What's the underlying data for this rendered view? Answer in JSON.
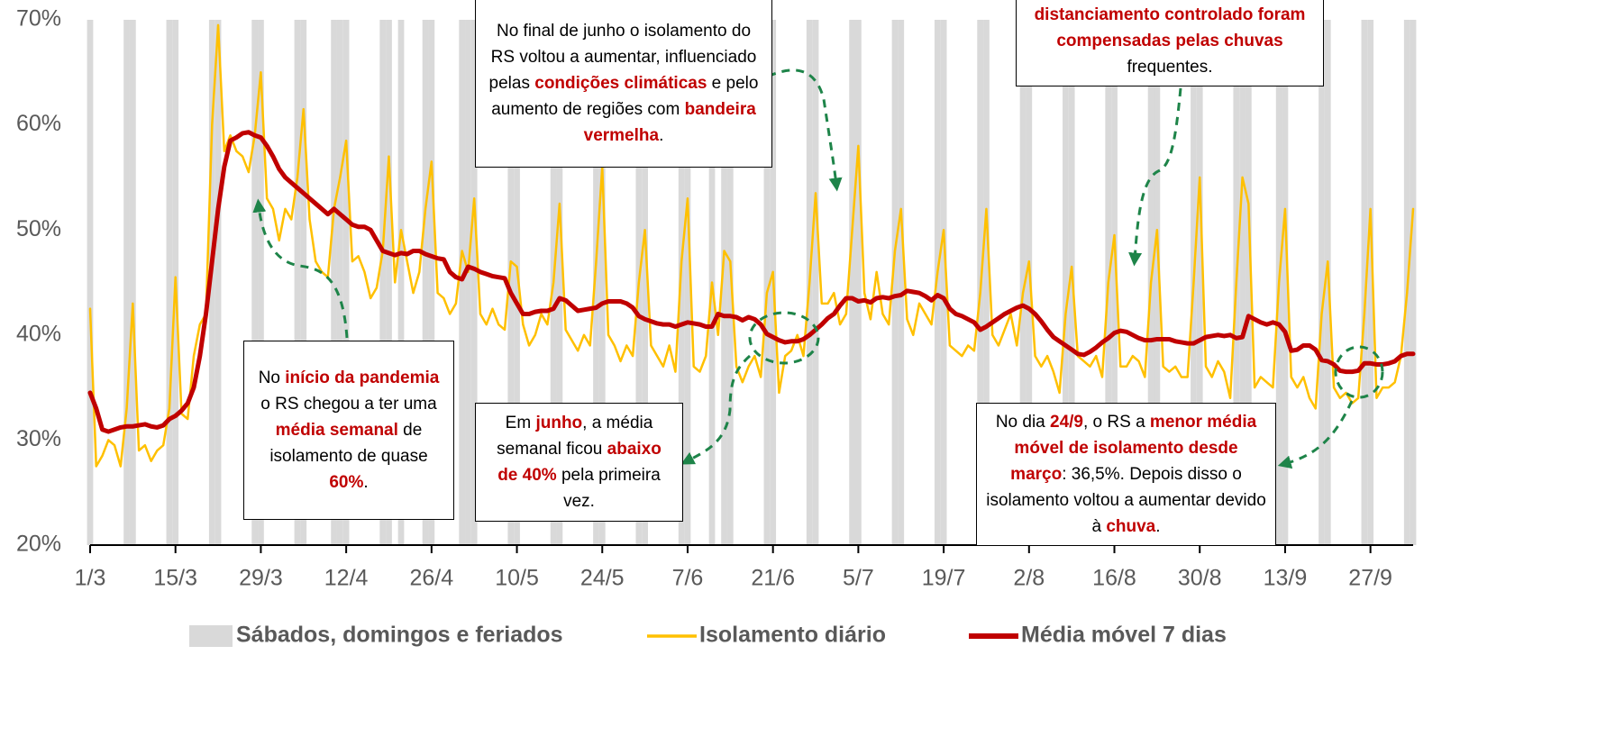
{
  "chart_data": {
    "type": "line",
    "ylim": [
      20,
      70
    ],
    "yticks": [
      {
        "value": 20,
        "label": "20%"
      },
      {
        "value": 30,
        "label": "30%"
      },
      {
        "value": 40,
        "label": "40%"
      },
      {
        "value": 50,
        "label": "50%"
      },
      {
        "value": 60,
        "label": "60%"
      },
      {
        "value": 70,
        "label": "70%"
      }
    ],
    "grid": false,
    "legend": "bottom",
    "categories": [
      "1/3",
      null,
      null,
      null,
      null,
      null,
      null,
      null,
      null,
      null,
      null,
      null,
      null,
      null,
      "15/3",
      null,
      null,
      null,
      null,
      null,
      null,
      null,
      null,
      null,
      null,
      null,
      null,
      null,
      "29/3",
      null,
      null,
      null,
      null,
      null,
      null,
      null,
      null,
      null,
      null,
      null,
      null,
      null,
      "12/4",
      null,
      null,
      null,
      null,
      null,
      null,
      null,
      null,
      null,
      null,
      null,
      null,
      null,
      "26/4",
      null,
      null,
      null,
      null,
      null,
      null,
      null,
      null,
      null,
      null,
      null,
      null,
      null,
      "10/5",
      null,
      null,
      null,
      null,
      null,
      null,
      null,
      null,
      null,
      null,
      null,
      null,
      null,
      "24/5",
      null,
      null,
      null,
      null,
      null,
      null,
      null,
      null,
      null,
      null,
      null,
      null,
      null,
      "7/6",
      null,
      null,
      null,
      null,
      null,
      null,
      null,
      null,
      null,
      null,
      null,
      null,
      null,
      "21/6",
      null,
      null,
      null,
      null,
      null,
      null,
      null,
      null,
      null,
      null,
      null,
      null,
      null,
      "5/7",
      null,
      null,
      null,
      null,
      null,
      null,
      null,
      null,
      null,
      null,
      null,
      null,
      null,
      "19/7",
      null,
      null,
      null,
      null,
      null,
      null,
      null,
      null,
      null,
      null,
      null,
      null,
      null,
      "2/8",
      null,
      null,
      null,
      null,
      null,
      null,
      null,
      null,
      null,
      null,
      null,
      null,
      null,
      "16/8",
      null,
      null,
      null,
      null,
      null,
      null,
      null,
      null,
      null,
      null,
      null,
      null,
      null,
      "30/8",
      null,
      null,
      null,
      null,
      null,
      null,
      null,
      null,
      null,
      null,
      null,
      null,
      null,
      "13/9",
      null,
      null,
      null,
      null,
      null,
      null,
      null,
      null,
      null,
      null,
      null,
      null,
      null,
      "27/9",
      null,
      null,
      null,
      null,
      null,
      null,
      null
    ],
    "series": [
      {
        "name": "Sábados, domingos e feriados",
        "type": "bar",
        "color": "#d9d9d9",
        "values": [
          70,
          null,
          null,
          null,
          null,
          null,
          70,
          70,
          null,
          null,
          null,
          null,
          null,
          70,
          70,
          null,
          null,
          null,
          null,
          null,
          70,
          70,
          null,
          null,
          null,
          null,
          null,
          70,
          70,
          null,
          null,
          null,
          null,
          null,
          70,
          70,
          null,
          null,
          null,
          null,
          70,
          70,
          70,
          null,
          null,
          null,
          null,
          null,
          70,
          70,
          null,
          70,
          null,
          null,
          null,
          70,
          70,
          null,
          null,
          null,
          null,
          70,
          70,
          70,
          null,
          null,
          null,
          null,
          null,
          70,
          70,
          null,
          null,
          null,
          null,
          null,
          70,
          70,
          null,
          null,
          null,
          null,
          null,
          70,
          70,
          null,
          null,
          null,
          null,
          null,
          70,
          70,
          null,
          null,
          null,
          null,
          null,
          70,
          70,
          null,
          null,
          null,
          70,
          null,
          70,
          70,
          null,
          null,
          null,
          null,
          null,
          70,
          70,
          null,
          null,
          null,
          null,
          null,
          70,
          70,
          null,
          null,
          null,
          null,
          null,
          70,
          70,
          null,
          null,
          null,
          null,
          null,
          70,
          70,
          null,
          null,
          null,
          null,
          null,
          70,
          70,
          null,
          null,
          null,
          null,
          null,
          70,
          70,
          null,
          null,
          null,
          null,
          null,
          70,
          70,
          null,
          null,
          null,
          null,
          null,
          70,
          70,
          null,
          null,
          null,
          null,
          null,
          70,
          70,
          null,
          null,
          null,
          null,
          null,
          70,
          70,
          null,
          null,
          null,
          null,
          null,
          70,
          70,
          null,
          null,
          null,
          null,
          null,
          70,
          70,
          70,
          null,
          null,
          null,
          null,
          70,
          70,
          null,
          null,
          null,
          null,
          null,
          70,
          70,
          null,
          null,
          null,
          null,
          null,
          70,
          70,
          null,
          null,
          null,
          null,
          null,
          70,
          70
        ]
      },
      {
        "name": "Isolamento diário",
        "type": "line",
        "color": "#ffc000",
        "width": 2.5,
        "values": [
          42.5,
          27.5,
          28.5,
          30,
          29.5,
          27.5,
          33,
          43,
          29,
          29.5,
          28,
          29,
          29.5,
          33,
          45.5,
          32.5,
          32,
          38,
          41,
          42,
          60,
          69.5,
          57.5,
          59,
          57.5,
          57,
          55.5,
          59,
          65,
          53,
          52,
          49,
          52,
          51,
          55,
          61.5,
          51,
          47,
          46,
          45.5,
          52,
          55,
          58.5,
          47,
          47.5,
          46,
          43.5,
          44.5,
          48,
          57,
          45,
          50,
          47,
          44,
          46,
          52,
          56.5,
          44,
          43.5,
          42,
          43,
          48,
          46,
          53,
          42,
          41,
          42.5,
          41,
          40.5,
          47,
          46.5,
          41,
          39,
          40,
          42,
          41,
          45,
          52.5,
          40.5,
          39.5,
          38.5,
          40,
          39,
          47,
          56,
          40,
          39,
          37.5,
          39,
          38,
          45,
          50,
          39,
          38,
          37,
          39,
          36.5,
          47,
          53,
          37,
          36.5,
          38,
          45,
          40,
          48,
          47,
          37,
          35.5,
          37,
          38,
          36,
          44,
          46,
          34.5,
          38,
          38.5,
          40,
          38,
          45,
          53.5,
          43,
          43,
          44,
          41,
          42,
          50,
          58,
          44,
          41.5,
          46,
          42,
          41,
          48,
          52,
          41.5,
          40,
          43,
          42,
          41,
          46,
          50,
          39,
          38.5,
          38,
          39,
          38.5,
          44,
          52,
          40,
          39,
          40.5,
          42,
          39,
          44,
          47,
          38,
          37,
          38,
          36.5,
          34.5,
          42,
          46.5,
          38,
          37.5,
          37,
          38,
          36,
          45,
          49.5,
          37,
          37,
          38,
          37.5,
          36,
          45,
          50,
          37,
          36.5,
          37,
          36,
          36,
          45,
          55,
          37,
          36,
          37.5,
          36.5,
          34,
          45,
          55,
          52.5,
          35,
          36,
          35.5,
          35,
          45,
          52,
          36,
          35,
          36,
          34,
          33,
          42,
          47,
          35,
          34,
          34.5,
          33.5,
          34,
          42,
          52,
          34,
          35,
          35,
          35.5,
          38,
          44,
          52
        ]
      },
      {
        "name": "Média móvel 7 dias",
        "type": "line",
        "color": "#c00000",
        "width": 5,
        "values": [
          34.5,
          33,
          31,
          30.8,
          31,
          31.2,
          31.3,
          31.3,
          31.4,
          31.5,
          31.3,
          31.2,
          31.4,
          32,
          32.3,
          32.8,
          33.5,
          35,
          38,
          42,
          47,
          52,
          56,
          58.5,
          58.8,
          59.2,
          59.3,
          59,
          58.8,
          58,
          57,
          55.8,
          55,
          54.5,
          54,
          53.5,
          53,
          52.5,
          52,
          51.5,
          52,
          51.5,
          51,
          50.5,
          50.3,
          50.3,
          50,
          49,
          48,
          47.8,
          47.6,
          47.8,
          47.7,
          48,
          48,
          47.7,
          47.5,
          47.3,
          47.2,
          46,
          45.5,
          45.3,
          46.5,
          46.3,
          46,
          45.8,
          45.6,
          45.5,
          45.4,
          44,
          43,
          42,
          42,
          42.2,
          42.3,
          42.3,
          42.5,
          43.5,
          43.3,
          42.8,
          42.3,
          42.4,
          42.5,
          42.6,
          43,
          43.2,
          43.2,
          43.2,
          43,
          42.6,
          41.8,
          41.5,
          41.3,
          41.1,
          41,
          41,
          40.8,
          41,
          41.2,
          41.1,
          41,
          40.8,
          40.8,
          42,
          41.8,
          41.8,
          41.7,
          41.4,
          41.7,
          41.5,
          41,
          40.1,
          39.8,
          39.5,
          39.3,
          39.4,
          39.4,
          39.6,
          40,
          40.5,
          41,
          41.6,
          42,
          42.8,
          43.5,
          43.5,
          43.2,
          43.3,
          43.1,
          43.5,
          43.6,
          43.5,
          43.7,
          43.8,
          44.2,
          44.1,
          44,
          43.7,
          43.3,
          43.8,
          43.5,
          42.5,
          42,
          41.8,
          41.5,
          41.2,
          40.5,
          40.8,
          41.2,
          41.6,
          42,
          42.3,
          42.6,
          42.8,
          42.5,
          42,
          41.3,
          40.5,
          39.8,
          39.4,
          39,
          38.6,
          38.2,
          38.1,
          38.4,
          38.8,
          39.3,
          39.7,
          40.2,
          40.4,
          40.3,
          40,
          39.7,
          39.5,
          39.5,
          39.6,
          39.6,
          39.6,
          39.4,
          39.3,
          39.2,
          39.2,
          39.5,
          39.8,
          39.9,
          40,
          39.9,
          40,
          39.7,
          39.8,
          41.8,
          41.5,
          41.2,
          41,
          41.2,
          41,
          40.3,
          38.5,
          38.6,
          39,
          39,
          38.6,
          37.6,
          37.5,
          37.2,
          36.6,
          36.5,
          36.5,
          36.6,
          37.3,
          37.3,
          37.2,
          37.2,
          37.3,
          37.5,
          38,
          38.2,
          38.2
        ]
      }
    ],
    "annotations": [
      {
        "parts": [
          {
            "text": "No final de junho o isolamento do RS voltou a aumentar, influenciado pelas "
          },
          {
            "text": "condições climáticas",
            "highlight": true
          },
          {
            "text": " e pelo aumento de regiões com "
          },
          {
            "text": "bandeira vermelha",
            "highlight": true
          },
          {
            "text": "."
          }
        ]
      },
      {
        "parts": [
          {
            "text": "distanciamento controlado foram compensadas pelas chuvas",
            "highlight": true
          },
          {
            "text": " frequentes."
          }
        ]
      },
      {
        "parts": [
          {
            "text": "No "
          },
          {
            "text": "início da pandemia",
            "highlight": true
          },
          {
            "text": " o RS chegou a ter uma "
          },
          {
            "text": "média semanal",
            "highlight": true
          },
          {
            "text": " de isolamento de quase "
          },
          {
            "text": "60%",
            "highlight": true
          },
          {
            "text": "."
          }
        ]
      },
      {
        "parts": [
          {
            "text": "Em "
          },
          {
            "text": "junho",
            "highlight": true
          },
          {
            "text": ", a média semanal ficou "
          },
          {
            "text": "abaixo de 40%",
            "highlight": true
          },
          {
            "text": " pela primeira vez."
          }
        ]
      },
      {
        "parts": [
          {
            "text": "No dia "
          },
          {
            "text": "24/9",
            "highlight": true
          },
          {
            "text": ", o RS a "
          },
          {
            "text": "menor média móvel de isolamento desde março",
            "highlight": true
          },
          {
            "text": ": 36,5%. Depois disso o isolamento voltou a aumentar devido à "
          },
          {
            "text": "chuva",
            "highlight": true
          },
          {
            "text": "."
          }
        ]
      }
    ]
  }
}
